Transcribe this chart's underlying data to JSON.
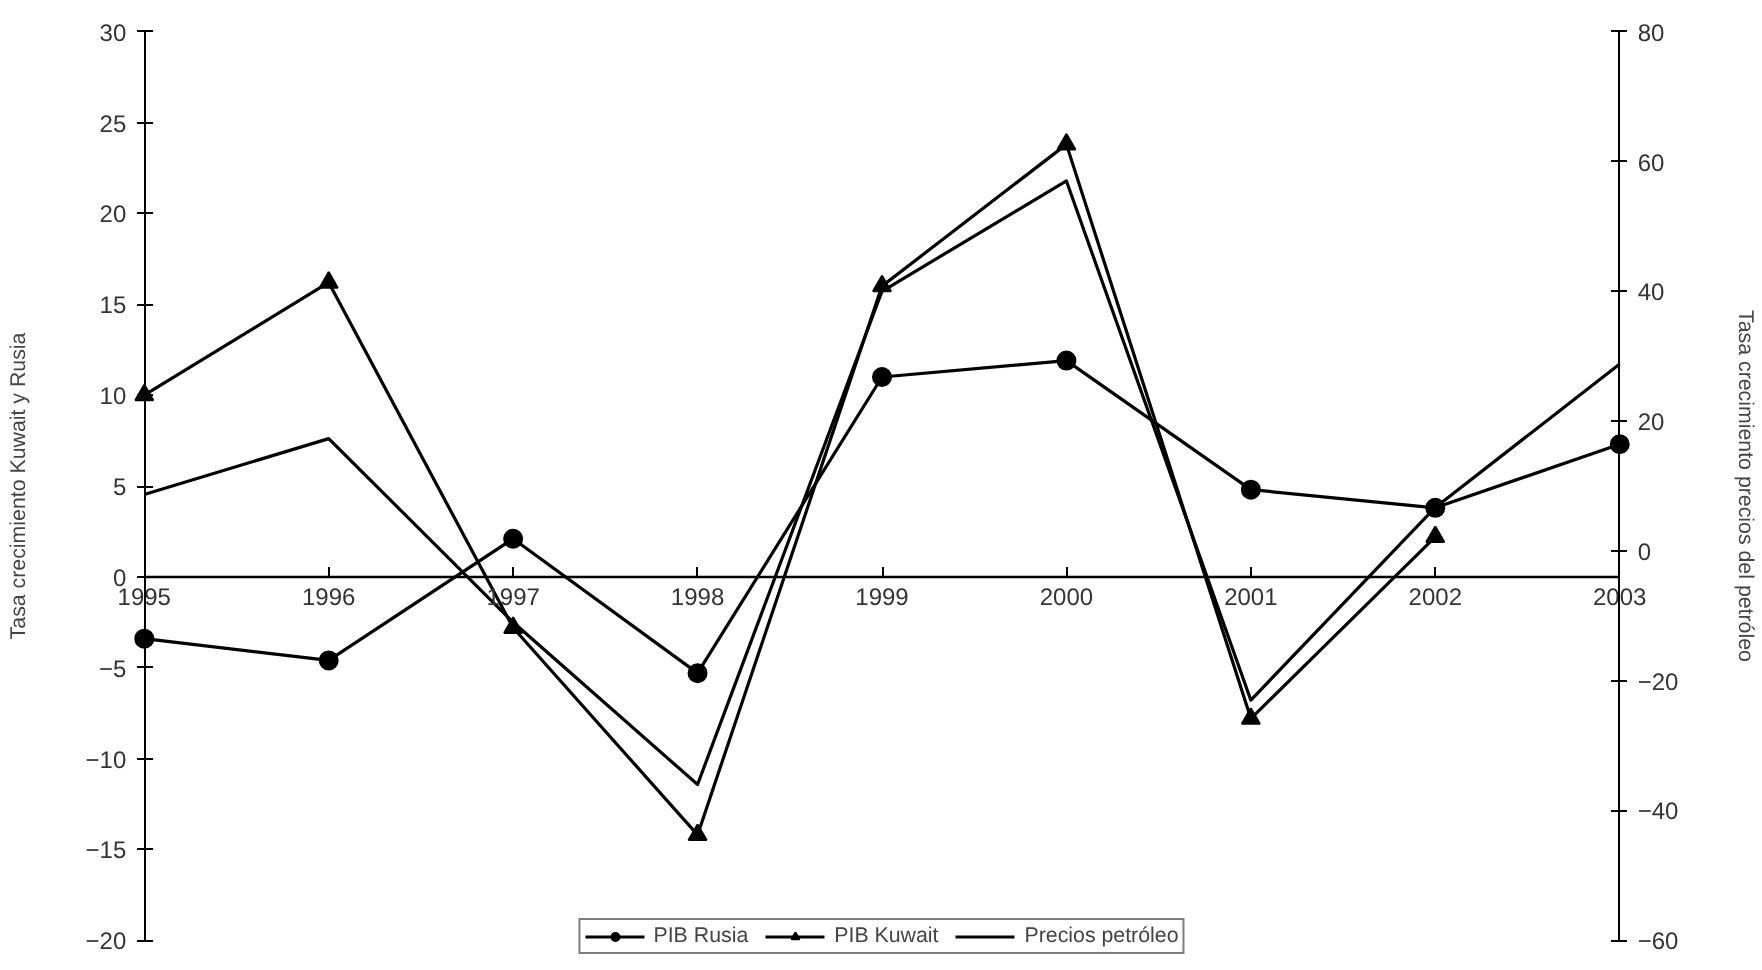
{
  "chart_data": {
    "type": "line",
    "x": [
      1995,
      1996,
      1997,
      1998,
      1999,
      2000,
      2001,
      2002,
      2003
    ],
    "xlim": [
      1995,
      2003
    ],
    "xticks": [
      1995,
      1996,
      1997,
      1998,
      1999,
      2000,
      2001,
      2002,
      2003
    ],
    "ylim": [
      -20,
      30
    ],
    "yticks": [
      -20,
      -15,
      -10,
      -5,
      0,
      5,
      10,
      15,
      20,
      25,
      30
    ],
    "y2lim": [
      -60,
      80
    ],
    "y2ticks": [
      -60,
      -40,
      -20,
      0,
      20,
      40,
      60,
      80
    ],
    "ylabel": "Tasa crecimiento Kuwait y Rusia",
    "y2label": "Tasa crecimiento precios del petróleo",
    "grid": false,
    "legend": "bottom",
    "series": [
      {
        "name": "PIB Rusia",
        "color": "#000000",
        "marker": "circle",
        "values": [
          -3.4,
          -4.6,
          2.1,
          -5.3,
          11,
          11.9,
          4.8,
          3.8,
          7.3
        ]
      },
      {
        "name": "PIB Kuwait",
        "color": "#000000",
        "marker": "triangle",
        "values": [
          10,
          16.2,
          -2.8,
          -14.2,
          16,
          23.8,
          -7.8,
          2.2,
          null
        ]
      },
      {
        "name": "Precios petróleo",
        "color": "#000000",
        "marker": "none",
        "axis": "y2",
        "values": [
          8.7,
          17.3,
          -11,
          -36,
          40,
          57,
          -23,
          6.7,
          28.8
        ]
      }
    ]
  }
}
